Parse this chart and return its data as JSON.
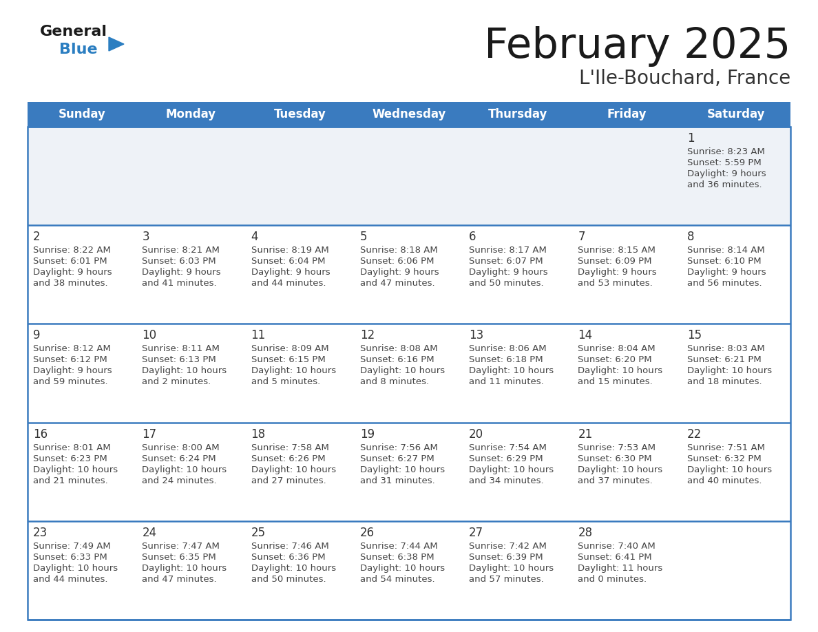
{
  "title": "February 2025",
  "subtitle": "L'Ile-Bouchard, France",
  "days_of_week": [
    "Sunday",
    "Monday",
    "Tuesday",
    "Wednesday",
    "Thursday",
    "Friday",
    "Saturday"
  ],
  "header_bg": "#3a7bbf",
  "header_text_color": "#ffffff",
  "cell_bg_row0": "#eef2f7",
  "cell_bg_other": "#ffffff",
  "divider_color": "#3a7bbf",
  "text_color": "#444444",
  "day_number_color": "#333333",
  "logo_general_color": "#1a1a1a",
  "logo_blue_color": "#2b7ec1",
  "title_color": "#1a1a1a",
  "subtitle_color": "#333333",
  "calendar": [
    [
      null,
      null,
      null,
      null,
      null,
      null,
      {
        "day": "1",
        "sunrise": "8:23 AM",
        "sunset": "5:59 PM",
        "daylight": "9 hours\nand 36 minutes."
      }
    ],
    [
      {
        "day": "2",
        "sunrise": "8:22 AM",
        "sunset": "6:01 PM",
        "daylight": "9 hours\nand 38 minutes."
      },
      {
        "day": "3",
        "sunrise": "8:21 AM",
        "sunset": "6:03 PM",
        "daylight": "9 hours\nand 41 minutes."
      },
      {
        "day": "4",
        "sunrise": "8:19 AM",
        "sunset": "6:04 PM",
        "daylight": "9 hours\nand 44 minutes."
      },
      {
        "day": "5",
        "sunrise": "8:18 AM",
        "sunset": "6:06 PM",
        "daylight": "9 hours\nand 47 minutes."
      },
      {
        "day": "6",
        "sunrise": "8:17 AM",
        "sunset": "6:07 PM",
        "daylight": "9 hours\nand 50 minutes."
      },
      {
        "day": "7",
        "sunrise": "8:15 AM",
        "sunset": "6:09 PM",
        "daylight": "9 hours\nand 53 minutes."
      },
      {
        "day": "8",
        "sunrise": "8:14 AM",
        "sunset": "6:10 PM",
        "daylight": "9 hours\nand 56 minutes."
      }
    ],
    [
      {
        "day": "9",
        "sunrise": "8:12 AM",
        "sunset": "6:12 PM",
        "daylight": "9 hours\nand 59 minutes."
      },
      {
        "day": "10",
        "sunrise": "8:11 AM",
        "sunset": "6:13 PM",
        "daylight": "10 hours\nand 2 minutes."
      },
      {
        "day": "11",
        "sunrise": "8:09 AM",
        "sunset": "6:15 PM",
        "daylight": "10 hours\nand 5 minutes."
      },
      {
        "day": "12",
        "sunrise": "8:08 AM",
        "sunset": "6:16 PM",
        "daylight": "10 hours\nand 8 minutes."
      },
      {
        "day": "13",
        "sunrise": "8:06 AM",
        "sunset": "6:18 PM",
        "daylight": "10 hours\nand 11 minutes."
      },
      {
        "day": "14",
        "sunrise": "8:04 AM",
        "sunset": "6:20 PM",
        "daylight": "10 hours\nand 15 minutes."
      },
      {
        "day": "15",
        "sunrise": "8:03 AM",
        "sunset": "6:21 PM",
        "daylight": "10 hours\nand 18 minutes."
      }
    ],
    [
      {
        "day": "16",
        "sunrise": "8:01 AM",
        "sunset": "6:23 PM",
        "daylight": "10 hours\nand 21 minutes."
      },
      {
        "day": "17",
        "sunrise": "8:00 AM",
        "sunset": "6:24 PM",
        "daylight": "10 hours\nand 24 minutes."
      },
      {
        "day": "18",
        "sunrise": "7:58 AM",
        "sunset": "6:26 PM",
        "daylight": "10 hours\nand 27 minutes."
      },
      {
        "day": "19",
        "sunrise": "7:56 AM",
        "sunset": "6:27 PM",
        "daylight": "10 hours\nand 31 minutes."
      },
      {
        "day": "20",
        "sunrise": "7:54 AM",
        "sunset": "6:29 PM",
        "daylight": "10 hours\nand 34 minutes."
      },
      {
        "day": "21",
        "sunrise": "7:53 AM",
        "sunset": "6:30 PM",
        "daylight": "10 hours\nand 37 minutes."
      },
      {
        "day": "22",
        "sunrise": "7:51 AM",
        "sunset": "6:32 PM",
        "daylight": "10 hours\nand 40 minutes."
      }
    ],
    [
      {
        "day": "23",
        "sunrise": "7:49 AM",
        "sunset": "6:33 PM",
        "daylight": "10 hours\nand 44 minutes."
      },
      {
        "day": "24",
        "sunrise": "7:47 AM",
        "sunset": "6:35 PM",
        "daylight": "10 hours\nand 47 minutes."
      },
      {
        "day": "25",
        "sunrise": "7:46 AM",
        "sunset": "6:36 PM",
        "daylight": "10 hours\nand 50 minutes."
      },
      {
        "day": "26",
        "sunrise": "7:44 AM",
        "sunset": "6:38 PM",
        "daylight": "10 hours\nand 54 minutes."
      },
      {
        "day": "27",
        "sunrise": "7:42 AM",
        "sunset": "6:39 PM",
        "daylight": "10 hours\nand 57 minutes."
      },
      {
        "day": "28",
        "sunrise": "7:40 AM",
        "sunset": "6:41 PM",
        "daylight": "11 hours\nand 0 minutes."
      },
      null
    ]
  ]
}
